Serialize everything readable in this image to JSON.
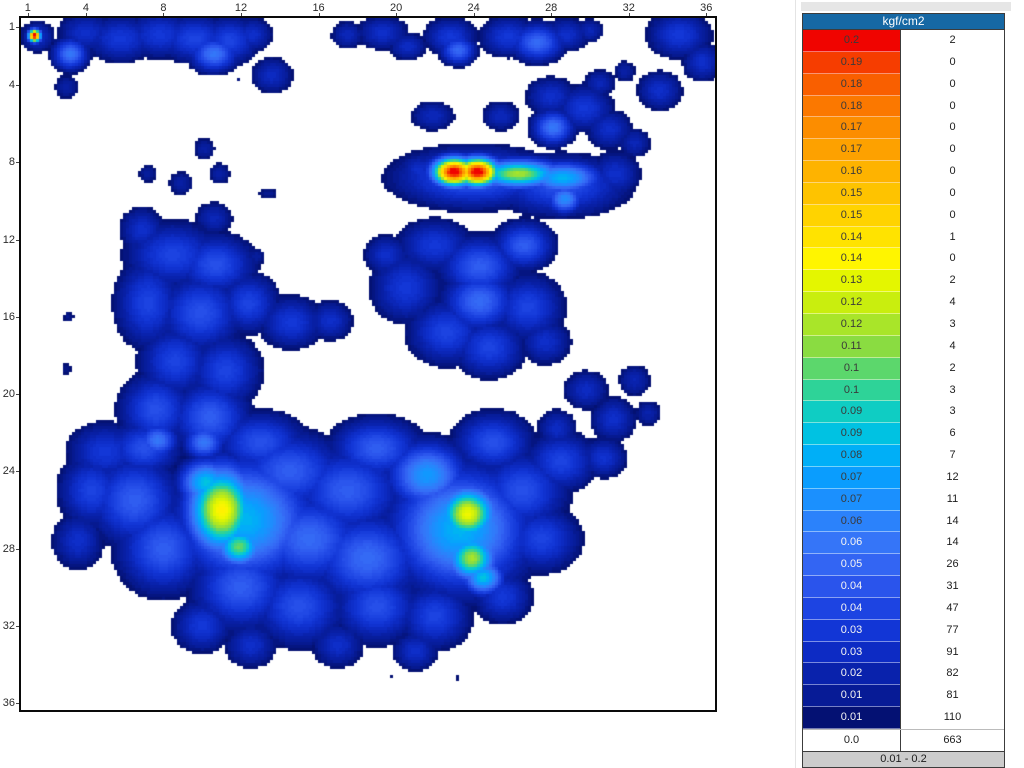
{
  "page": {
    "background": "#ffffff",
    "divider_color": "#e4e4e4"
  },
  "chart_data": {
    "type": "heatmap",
    "title": "",
    "units": "kgf/cm2",
    "grid_size": [
      36,
      36
    ],
    "total_cells": 1296,
    "x_ticks": [
      1,
      4,
      8,
      12,
      16,
      20,
      24,
      28,
      32,
      36
    ],
    "y_ticks": [
      1,
      4,
      8,
      12,
      16,
      20,
      24,
      28,
      32,
      36
    ],
    "x_domain": [
      0.65,
      36.45
    ],
    "y_domain": [
      0.53,
      36.36
    ],
    "value_range": [
      0.01,
      0.2
    ],
    "white_below": 0.0095,
    "quantize_step": 0.0025,
    "below_min_color": "#ffffff",
    "legend": {
      "header": "kgf/cm2",
      "footer": "0.01 - 0.2",
      "rows": [
        {
          "value": "0.2",
          "count": 2,
          "color": "#f00400"
        },
        {
          "value": "0.19",
          "count": 0,
          "color": "#f63d00"
        },
        {
          "value": "0.18",
          "count": 0,
          "color": "#f95f00"
        },
        {
          "value": "0.18",
          "count": 0,
          "color": "#fb7800"
        },
        {
          "value": "0.17",
          "count": 0,
          "color": "#fc8d00"
        },
        {
          "value": "0.17",
          "count": 0,
          "color": "#fda100"
        },
        {
          "value": "0.16",
          "count": 0,
          "color": "#feb300"
        },
        {
          "value": "0.15",
          "count": 0,
          "color": "#fec300"
        },
        {
          "value": "0.15",
          "count": 0,
          "color": "#ffd300"
        },
        {
          "value": "0.14",
          "count": 1,
          "color": "#ffe300"
        },
        {
          "value": "0.14",
          "count": 0,
          "color": "#fff500"
        },
        {
          "value": "0.13",
          "count": 2,
          "color": "#e4f600"
        },
        {
          "value": "0.12",
          "count": 4,
          "color": "#c9ee0e"
        },
        {
          "value": "0.12",
          "count": 3,
          "color": "#a9e529"
        },
        {
          "value": "0.11",
          "count": 4,
          "color": "#8adc41"
        },
        {
          "value": "0.1",
          "count": 2,
          "color": "#5cd76c"
        },
        {
          "value": "0.1",
          "count": 3,
          "color": "#2ed398"
        },
        {
          "value": "0.09",
          "count": 3,
          "color": "#0fcdc3"
        },
        {
          "value": "0.09",
          "count": 6,
          "color": "#00c2e2"
        },
        {
          "value": "0.08",
          "count": 7,
          "color": "#00aff7"
        },
        {
          "value": "0.07",
          "count": 12,
          "color": "#0a9dfe"
        },
        {
          "value": "0.07",
          "count": 11,
          "color": "#1b90fe"
        },
        {
          "value": "0.06",
          "count": 14,
          "color": "#2b82fb"
        },
        {
          "value": "0.06",
          "count": 14,
          "color": "#3575f8"
        },
        {
          "value": "0.05",
          "count": 26,
          "color": "#3365f3"
        },
        {
          "value": "0.04",
          "count": 31,
          "color": "#2a54ec"
        },
        {
          "value": "0.04",
          "count": 47,
          "color": "#1d44e2"
        },
        {
          "value": "0.03",
          "count": 77,
          "color": "#1236d6"
        },
        {
          "value": "0.03",
          "count": 91,
          "color": "#0d2bc4"
        },
        {
          "value": "0.02",
          "count": 82,
          "color": "#0922ac"
        },
        {
          "value": "0.01",
          "count": 81,
          "color": "#071b96"
        },
        {
          "value": "0.01",
          "count": 110,
          "color": "#041173"
        }
      ],
      "zero_row": {
        "value": "0.0",
        "count": 663
      }
    },
    "pressure_blobs_note": "approximate gaussian decomposition of the pressure field: [x, y, sigma_x, sigma_y, peak_kgf_cm2]",
    "pressure_blobs": [
      [
        1.35,
        1.45,
        0.22,
        0.22,
        0.21
      ],
      [
        1.5,
        1.5,
        0.6,
        0.55,
        0.03
      ],
      [
        4.0,
        1.3,
        1.0,
        0.7,
        0.03
      ],
      [
        5.8,
        1.6,
        1.2,
        0.8,
        0.035
      ],
      [
        7.8,
        1.4,
        1.2,
        0.8,
        0.035
      ],
      [
        9.6,
        1.6,
        1.2,
        0.8,
        0.04
      ],
      [
        11.4,
        1.7,
        1.0,
        0.8,
        0.04
      ],
      [
        12.6,
        1.4,
        0.7,
        0.6,
        0.03
      ],
      [
        3.2,
        2.4,
        0.6,
        0.55,
        0.06
      ],
      [
        10.6,
        2.4,
        0.8,
        0.6,
        0.06
      ],
      [
        17.5,
        1.4,
        0.6,
        0.5,
        0.026
      ],
      [
        19.3,
        1.3,
        0.9,
        0.6,
        0.03
      ],
      [
        20.6,
        2.0,
        0.7,
        0.5,
        0.028
      ],
      [
        22.8,
        1.5,
        0.9,
        0.65,
        0.035
      ],
      [
        23.2,
        2.2,
        0.6,
        0.5,
        0.055
      ],
      [
        25.8,
        1.5,
        1.0,
        0.7,
        0.035
      ],
      [
        27.3,
        1.8,
        0.9,
        0.65,
        0.055
      ],
      [
        28.8,
        1.4,
        0.8,
        0.6,
        0.03
      ],
      [
        30.0,
        1.2,
        0.5,
        0.45,
        0.025
      ],
      [
        34.6,
        1.4,
        1.1,
        0.8,
        0.035
      ],
      [
        35.8,
        2.8,
        0.7,
        0.7,
        0.03
      ],
      [
        33.6,
        4.3,
        0.8,
        0.7,
        0.03
      ],
      [
        31.8,
        3.3,
        0.45,
        0.45,
        0.02
      ],
      [
        3.0,
        4.1,
        0.5,
        0.5,
        0.02
      ],
      [
        13.6,
        3.5,
        0.75,
        0.65,
        0.028
      ],
      [
        11.9,
        3.75,
        0.13,
        0.13,
        0.013
      ],
      [
        10.1,
        7.3,
        0.45,
        0.45,
        0.02
      ],
      [
        7.2,
        8.6,
        0.4,
        0.4,
        0.018
      ],
      [
        8.9,
        9.1,
        0.5,
        0.5,
        0.02
      ],
      [
        10.9,
        8.6,
        0.45,
        0.45,
        0.02
      ],
      [
        13.4,
        9.6,
        0.45,
        0.25,
        0.016
      ],
      [
        21.9,
        5.6,
        0.8,
        0.55,
        0.026
      ],
      [
        25.4,
        5.6,
        0.7,
        0.55,
        0.026
      ],
      [
        12.8,
        12.9,
        0.4,
        0.4,
        0.018
      ],
      [
        28.0,
        4.6,
        0.9,
        0.7,
        0.03
      ],
      [
        29.7,
        5.2,
        1.0,
        0.8,
        0.035
      ],
      [
        28.1,
        6.2,
        0.7,
        0.6,
        0.06
      ],
      [
        31.0,
        6.3,
        0.8,
        0.7,
        0.03
      ],
      [
        32.3,
        7.0,
        0.6,
        0.55,
        0.025
      ],
      [
        30.5,
        3.9,
        0.6,
        0.5,
        0.025
      ],
      [
        23.0,
        8.5,
        0.75,
        0.5,
        0.21
      ],
      [
        24.2,
        8.5,
        0.75,
        0.5,
        0.21
      ],
      [
        26.3,
        8.6,
        1.5,
        0.5,
        0.12
      ],
      [
        28.6,
        8.8,
        1.3,
        0.55,
        0.085
      ],
      [
        24.0,
        8.8,
        2.6,
        1.0,
        0.05
      ],
      [
        28.5,
        9.2,
        2.2,
        1.0,
        0.045
      ],
      [
        28.7,
        9.9,
        0.6,
        0.5,
        0.07
      ],
      [
        21.2,
        8.4,
        0.7,
        0.6,
        0.03
      ],
      [
        31.3,
        8.6,
        0.9,
        0.8,
        0.03
      ],
      [
        6.9,
        11.5,
        0.8,
        0.8,
        0.03
      ],
      [
        10.6,
        10.9,
        0.7,
        0.6,
        0.025
      ],
      [
        8.5,
        12.8,
        1.6,
        1.1,
        0.04
      ],
      [
        10.7,
        13.3,
        1.3,
        1.0,
        0.045
      ],
      [
        7.2,
        15.3,
        1.1,
        1.5,
        0.04
      ],
      [
        9.9,
        15.8,
        1.4,
        1.3,
        0.045
      ],
      [
        12.4,
        15.3,
        1.0,
        1.0,
        0.04
      ],
      [
        14.6,
        16.3,
        1.1,
        0.9,
        0.035
      ],
      [
        16.6,
        16.2,
        0.8,
        0.7,
        0.03
      ],
      [
        8.6,
        18.3,
        1.2,
        1.2,
        0.04
      ],
      [
        11.2,
        18.8,
        1.2,
        1.2,
        0.04
      ],
      [
        7.6,
        20.8,
        1.2,
        1.2,
        0.045
      ],
      [
        10.4,
        21.2,
        1.3,
        1.2,
        0.05
      ],
      [
        7.7,
        22.4,
        0.7,
        0.6,
        0.06
      ],
      [
        10.1,
        22.5,
        0.7,
        0.6,
        0.06
      ],
      [
        3.1,
        16.0,
        0.3,
        0.3,
        0.014
      ],
      [
        3.0,
        18.7,
        0.3,
        0.3,
        0.014
      ],
      [
        22.0,
        12.3,
        1.3,
        0.9,
        0.035
      ],
      [
        19.5,
        12.8,
        0.8,
        0.7,
        0.03
      ],
      [
        24.3,
        13.4,
        1.3,
        1.0,
        0.05
      ],
      [
        26.6,
        12.3,
        1.0,
        0.8,
        0.05
      ],
      [
        20.5,
        14.5,
        1.2,
        1.2,
        0.035
      ],
      [
        24.3,
        15.2,
        1.2,
        1.0,
        0.055
      ],
      [
        26.8,
        15.5,
        1.2,
        1.1,
        0.04
      ],
      [
        22.6,
        16.8,
        1.3,
        1.1,
        0.04
      ],
      [
        24.8,
        17.6,
        1.2,
        1.0,
        0.04
      ],
      [
        27.7,
        17.3,
        0.9,
        0.8,
        0.03
      ],
      [
        29.8,
        19.8,
        0.8,
        0.7,
        0.028
      ],
      [
        31.2,
        21.3,
        0.8,
        0.8,
        0.03
      ],
      [
        28.3,
        21.8,
        0.7,
        0.7,
        0.028
      ],
      [
        30.7,
        23.3,
        0.8,
        0.7,
        0.032
      ],
      [
        32.3,
        19.3,
        0.6,
        0.6,
        0.024
      ],
      [
        33.0,
        21.0,
        0.5,
        0.5,
        0.022
      ],
      [
        11.0,
        26.0,
        1.15,
        1.5,
        0.14
      ],
      [
        11.9,
        27.9,
        0.8,
        0.7,
        0.11
      ],
      [
        10.2,
        24.6,
        0.9,
        0.8,
        0.09
      ],
      [
        12.2,
        26.5,
        2.2,
        2.0,
        0.085
      ],
      [
        23.7,
        26.2,
        1.0,
        0.95,
        0.135
      ],
      [
        23.9,
        28.5,
        0.85,
        0.8,
        0.12
      ],
      [
        24.5,
        29.5,
        0.7,
        0.6,
        0.09
      ],
      [
        23.3,
        27.0,
        2.2,
        2.0,
        0.085
      ],
      [
        21.6,
        24.2,
        1.3,
        1.1,
        0.075
      ],
      [
        5.0,
        23.0,
        1.3,
        1.0,
        0.035
      ],
      [
        4.3,
        25.0,
        1.1,
        1.2,
        0.04
      ],
      [
        3.6,
        27.6,
        0.9,
        1.0,
        0.03
      ],
      [
        6.5,
        25.5,
        1.5,
        1.5,
        0.05
      ],
      [
        8.0,
        28.0,
        1.5,
        1.5,
        0.05
      ],
      [
        14.5,
        24.0,
        1.8,
        1.3,
        0.05
      ],
      [
        17.5,
        25.0,
        1.8,
        1.4,
        0.05
      ],
      [
        15.5,
        27.5,
        1.8,
        1.5,
        0.055
      ],
      [
        18.5,
        28.5,
        1.8,
        1.5,
        0.055
      ],
      [
        12.0,
        30.0,
        1.6,
        1.4,
        0.05
      ],
      [
        15.0,
        31.0,
        1.5,
        1.3,
        0.045
      ],
      [
        19.0,
        31.0,
        1.4,
        1.2,
        0.045
      ],
      [
        22.0,
        31.5,
        1.2,
        1.1,
        0.04
      ],
      [
        10.0,
        32.0,
        1.0,
        0.9,
        0.035
      ],
      [
        12.5,
        33.0,
        0.9,
        0.8,
        0.03
      ],
      [
        17.0,
        33.0,
        0.9,
        0.8,
        0.03
      ],
      [
        21.0,
        33.3,
        0.8,
        0.7,
        0.03
      ],
      [
        26.5,
        25.0,
        1.5,
        1.3,
        0.045
      ],
      [
        28.5,
        23.5,
        1.2,
        1.0,
        0.04
      ],
      [
        27.5,
        27.5,
        1.3,
        1.1,
        0.04
      ],
      [
        25.5,
        30.5,
        1.0,
        0.9,
        0.035
      ],
      [
        7.0,
        22.8,
        1.2,
        0.9,
        0.045
      ],
      [
        13.0,
        22.5,
        1.5,
        1.0,
        0.045
      ],
      [
        19.0,
        22.8,
        1.5,
        1.0,
        0.05
      ],
      [
        25.0,
        22.5,
        1.3,
        1.0,
        0.045
      ],
      [
        19.8,
        34.7,
        0.13,
        0.13,
        0.012
      ],
      [
        23.2,
        34.7,
        0.13,
        0.13,
        0.012
      ]
    ]
  }
}
